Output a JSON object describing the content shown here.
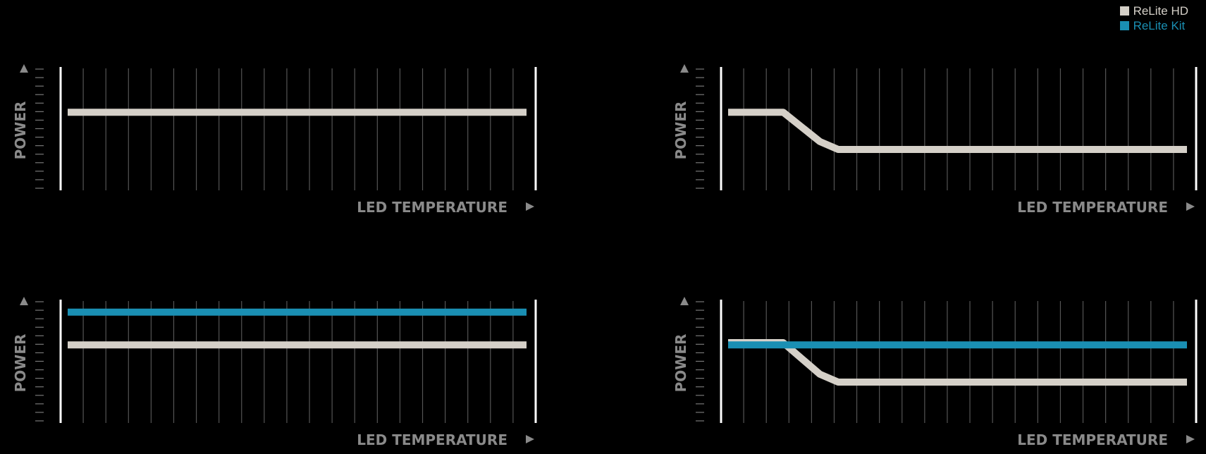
{
  "legend": {
    "items": [
      {
        "label": "ReLite HD",
        "color": "#d5d0c8"
      },
      {
        "label": "ReLite Kit",
        "color": "#1a8fb3"
      }
    ]
  },
  "colors": {
    "background": "#000000",
    "grid": "#555555",
    "axis": "#ffffff",
    "label": "#8a8a8a"
  },
  "chart_data": [
    {
      "type": "line",
      "xlabel": "LED TEMPERATURE",
      "ylabel": "POWER",
      "grid": true,
      "series": [
        {
          "name": "ReLite HD",
          "color": "#d5d0c8",
          "x": [
            0,
            1
          ],
          "y": [
            0.63,
            0.63
          ]
        }
      ]
    },
    {
      "type": "line",
      "xlabel": "LED TEMPERATURE",
      "ylabel": "POWER",
      "grid": true,
      "series": [
        {
          "name": "ReLite HD",
          "color": "#d5d0c8",
          "x": [
            0,
            0.12,
            0.2,
            0.24,
            1
          ],
          "y": [
            0.63,
            0.63,
            0.37,
            0.3,
            0.3
          ]
        }
      ]
    },
    {
      "type": "line",
      "xlabel": "LED TEMPERATURE",
      "ylabel": "POWER",
      "grid": true,
      "series": [
        {
          "name": "ReLite Kit",
          "color": "#1a8fb3",
          "x": [
            0,
            1
          ],
          "y": [
            0.92,
            0.92
          ]
        },
        {
          "name": "ReLite HD",
          "color": "#d5d0c8",
          "x": [
            0,
            1
          ],
          "y": [
            0.63,
            0.63
          ]
        }
      ]
    },
    {
      "type": "line",
      "xlabel": "LED TEMPERATURE",
      "ylabel": "POWER",
      "grid": true,
      "series": [
        {
          "name": "ReLite HD",
          "color": "#d5d0c8",
          "x": [
            0,
            0.12,
            0.2,
            0.24,
            1
          ],
          "y": [
            0.65,
            0.65,
            0.37,
            0.3,
            0.3
          ]
        },
        {
          "name": "ReLite Kit",
          "color": "#1a8fb3",
          "x": [
            0,
            1
          ],
          "y": [
            0.63,
            0.63
          ]
        }
      ]
    }
  ]
}
